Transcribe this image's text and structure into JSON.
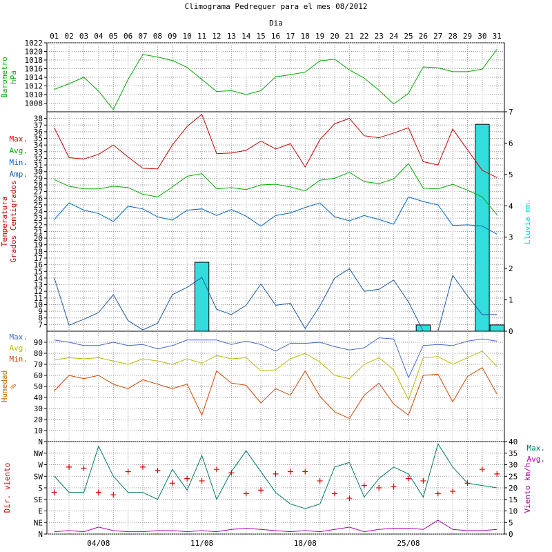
{
  "chart_data": {
    "type": "line",
    "title": "Climograma Pedreguer para el mes 08/2012",
    "xlabel": "Dia",
    "days": [
      "01",
      "02",
      "03",
      "04",
      "05",
      "06",
      "07",
      "08",
      "09",
      "10",
      "11",
      "12",
      "13",
      "14",
      "15",
      "16",
      "17",
      "18",
      "19",
      "20",
      "21",
      "22",
      "23",
      "24",
      "25",
      "26",
      "27",
      "28",
      "29",
      "30",
      "31"
    ],
    "week_labels": [
      {
        "day": 4,
        "text": "04/08"
      },
      {
        "day": 11,
        "text": "11/08"
      },
      {
        "day": 18,
        "text": "18/08"
      },
      {
        "day": 25,
        "text": "25/08"
      }
    ],
    "grid": true,
    "panels": [
      {
        "id": "barometro",
        "ylabel": [
          "Barometro",
          "hPa"
        ],
        "ylabel_color": "#00aa00",
        "ylim": [
          1006,
          1022
        ],
        "yticks": [
          "1008",
          "1010",
          "1012",
          "1014",
          "1016",
          "1018",
          "1020",
          "1022"
        ],
        "series": [
          {
            "name": "",
            "color": "#00aa00",
            "values": [
              1011.2,
              1012.5,
              1014,
              1010.8,
              1006.5,
              1013.5,
              1019.3,
              1018.7,
              1017.9,
              1016.3,
              1013.5,
              1010.7,
              1010.9,
              1010,
              1010.9,
              1014.1,
              1014.6,
              1015.2,
              1017.8,
              1018.2,
              1015.7,
              1013.8,
              1011,
              1007.8,
              1010.3,
              1016.4,
              1016.2,
              1015.3,
              1015.3,
              1015.9,
              1020.5
            ]
          }
        ]
      },
      {
        "id": "temperatura",
        "ylabel": [
          "Temperatura",
          "Grados Centigrados"
        ],
        "ylabel_color": "#cc0000",
        "ylim": [
          6,
          39
        ],
        "yticks": [
          "7",
          "8",
          "9",
          "10",
          "11",
          "12",
          "13",
          "14",
          "15",
          "16",
          "17",
          "18",
          "19",
          "20",
          "21",
          "22",
          "23",
          "24",
          "25",
          "26",
          "27",
          "28",
          "29",
          "30",
          "31",
          "32",
          "33",
          "34",
          "35",
          "36",
          "37",
          "38"
        ],
        "legend": [
          {
            "text": "Max.",
            "color": "#cc0000"
          },
          {
            "text": "Avg.",
            "color": "#00aa00"
          },
          {
            "text": "Min.",
            "color": "#0066cc"
          },
          {
            "text": "Amp.",
            "color": "#1e5aa0"
          }
        ],
        "series": [
          {
            "name": "Max.",
            "color": "#cc0000",
            "values": [
              36.6,
              32.1,
              31.9,
              32.6,
              34,
              32.2,
              30.5,
              30.4,
              34,
              36.8,
              38.6,
              32.7,
              32.8,
              33.2,
              34.6,
              33.4,
              34.2,
              30.7,
              34.8,
              37.2,
              38,
              35.4,
              35.1,
              35.8,
              36.6,
              31.5,
              31,
              36.4,
              33.3,
              30.2,
              29.1
            ]
          },
          {
            "name": "Avg.",
            "color": "#00aa00",
            "values": [
              28.8,
              27.8,
              27.4,
              27.4,
              27.8,
              27.6,
              26.6,
              26.2,
              27.7,
              29.3,
              29.7,
              27.4,
              27.6,
              27.3,
              28,
              28.1,
              27.7,
              27.1,
              28.7,
              29,
              29.9,
              28.5,
              28.2,
              28.9,
              31.2,
              27.5,
              27.4,
              28.1,
              27.2,
              26.2,
              23.5
            ]
          },
          {
            "name": "Min.",
            "color": "#0066cc",
            "values": [
              22.8,
              25.3,
              24.2,
              23.7,
              22.5,
              24.8,
              24.4,
              23.2,
              22.7,
              24.2,
              24.4,
              23.4,
              24.3,
              23.3,
              21.8,
              23.4,
              23.8,
              24.6,
              25.3,
              23.2,
              22.6,
              23.4,
              22.8,
              22.1,
              26.2,
              25.5,
              25,
              21.9,
              22,
              21.8,
              20.6
            ]
          },
          {
            "name": "Amp.",
            "color": "#1e5aa0",
            "values": [
              14,
              6.9,
              7.8,
              8.8,
              11.5,
              7.6,
              6.2,
              7.2,
              11.5,
              12.6,
              14.1,
              9.3,
              8.5,
              9.9,
              13.1,
              9.9,
              10.2,
              6.4,
              9.8,
              14,
              15.4,
              12,
              12.3,
              13.7,
              10.4,
              6,
              6,
              14.4,
              11.3,
              8.5,
              8.5
            ]
          }
        ],
        "secondary": {
          "ylabel": "Lluvia mm.",
          "ylabel_color": "#00dddd",
          "ylim": [
            0,
            7
          ],
          "yticks": [
            "0",
            "1",
            "2",
            "3",
            "4",
            "5",
            "6",
            "7"
          ],
          "bars": [
            {
              "day": 11,
              "value": 2.2
            },
            {
              "day": 26,
              "value": 0.2
            },
            {
              "day": 30,
              "value": 6.6
            },
            {
              "day": 31,
              "value": 0.2
            }
          ]
        }
      },
      {
        "id": "humedad",
        "ylabel": [
          "Humedad",
          "%"
        ],
        "ylabel_color": "#cc6600",
        "ylim": [
          0,
          100
        ],
        "yticks": [
          "10",
          "20",
          "30",
          "40",
          "50",
          "60",
          "70",
          "80",
          "90"
        ],
        "legend": [
          {
            "text": "Max.",
            "color": "#4466cc"
          },
          {
            "text": "Avg.",
            "color": "#bbbb00"
          },
          {
            "text": "Min.",
            "color": "#cc4400"
          }
        ],
        "series": [
          {
            "name": "Max.",
            "color": "#4466cc",
            "values": [
              92,
              90,
              87,
              87,
              90,
              87,
              88,
              84,
              87,
              92,
              92,
              92,
              88,
              91,
              88,
              82,
              89,
              89,
              90,
              86,
              83,
              85,
              94,
              93,
              58,
              87,
              88,
              87,
              91,
              93,
              91
            ]
          },
          {
            "name": "Avg.",
            "color": "#bbbb00",
            "values": [
              74,
              76,
              75,
              76,
              73,
              70,
              75,
              73,
              70,
              75,
              71,
              78,
              75,
              76,
              64,
              65,
              75,
              80,
              72,
              60,
              57,
              70,
              76,
              65,
              38,
              76,
              77,
              70,
              76,
              82,
              68
            ]
          },
          {
            "name": "Min.",
            "color": "#cc4400",
            "values": [
              46,
              60,
              57,
              60,
              52,
              48,
              56,
              52,
              48,
              52,
              24,
              64,
              53,
              51,
              35,
              48,
              42,
              64,
              41,
              27,
              21,
              42,
              53,
              34,
              24,
              60,
              61,
              36,
              59,
              67,
              43
            ]
          }
        ]
      },
      {
        "id": "viento",
        "ylabel": "Dir. viento",
        "ylabel_color": "#cc0000",
        "ylim": [
          0,
          8
        ],
        "yticks": [
          "N",
          "NE",
          "E",
          "SE",
          "S",
          "SW",
          "W",
          "NW",
          "N"
        ],
        "legend": [
          {
            "text": "Max.",
            "color": "#007766"
          },
          {
            "text": "Avg.",
            "color": "#aa00aa"
          }
        ],
        "direction": {
          "name": "Dir. viento",
          "marker": "+",
          "color": "#dd0000",
          "values": [
            3.6,
            5.8,
            5.7,
            3.6,
            3.4,
            5.4,
            5.8,
            5.5,
            4.4,
            4.8,
            4.6,
            5.6,
            5.3,
            3.5,
            3.8,
            5.2,
            5.4,
            5.4,
            4.6,
            3.5,
            3.1,
            4.2,
            4.0,
            4.1,
            4.8,
            4.6,
            3.5,
            3.7,
            4.4,
            5.6,
            5.2
          ]
        },
        "secondary": {
          "ylabel": "Viento km/h",
          "ylabel_color": "#aa00aa",
          "ylim": [
            0,
            40
          ],
          "yticks": [
            "0",
            "5",
            "10",
            "15",
            "20",
            "25",
            "30",
            "35",
            "40"
          ],
          "series": [
            {
              "name": "Max.",
              "color": "#007766",
              "values": [
                25,
                18,
                18,
                38,
                25,
                18,
                18,
                15,
                28,
                19,
                34,
                15,
                27,
                36,
                27,
                18,
                13,
                11,
                13,
                29,
                31,
                16,
                24,
                29,
                26,
                16,
                39,
                29,
                22,
                21,
                20
              ]
            },
            {
              "name": "Avg.",
              "color": "#aa00aa",
              "values": [
                1,
                1.5,
                1,
                3,
                1.5,
                1,
                1,
                1.5,
                1.5,
                1,
                1.5,
                1,
                2,
                2.5,
                2,
                1.5,
                1,
                1.5,
                1,
                2,
                3,
                1,
                2,
                2.5,
                2.5,
                2,
                6,
                2,
                1.5,
                1.5,
                2
              ]
            }
          ]
        }
      }
    ]
  }
}
